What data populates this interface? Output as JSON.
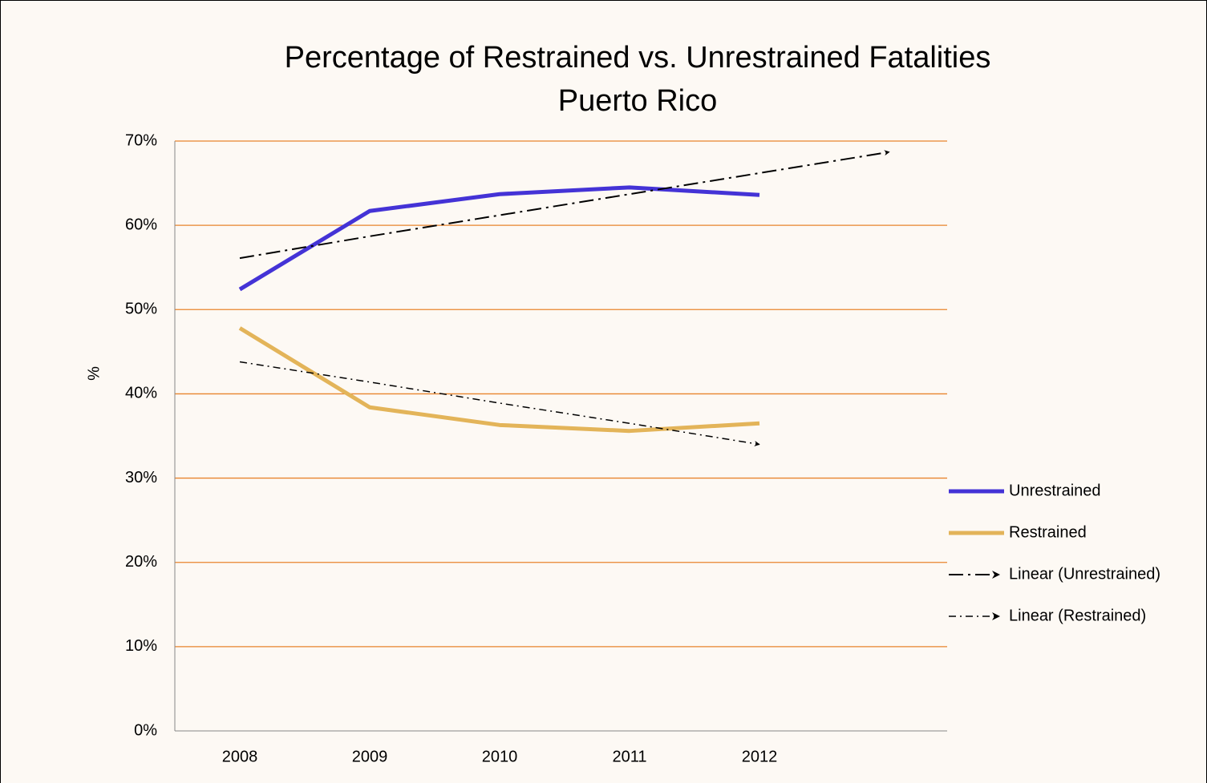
{
  "chart_data": {
    "type": "line",
    "title": "Percentage of Restrained vs. Unrestrained Fatalities",
    "subtitle": "Puerto Rico",
    "y_label": "%",
    "categories": [
      "2008",
      "2009",
      "2010",
      "2011",
      "2012",
      null
    ],
    "series": [
      {
        "name": "Unrestrained",
        "color": "#4433d6",
        "width": 5,
        "dash": "none",
        "values": [
          52.4,
          61.7,
          63.7,
          64.5,
          63.6,
          null
        ]
      },
      {
        "name": "Restrained",
        "color": "#e3b459",
        "width": 5,
        "dash": "none",
        "values": [
          47.8,
          38.4,
          36.3,
          35.6,
          36.5,
          null
        ]
      },
      {
        "name": "Linear (Unrestrained)",
        "color": "#000000",
        "width": 2,
        "dash": "18 6 3 6",
        "arrow": true,
        "values": [
          56.1,
          58.7,
          61.2,
          63.7,
          66.2,
          68.7
        ]
      },
      {
        "name": "Linear (Restrained)",
        "color": "#000000",
        "width": 1.5,
        "dash": "9 5 2 5",
        "arrow": true,
        "values": [
          43.8,
          41.4,
          38.9,
          36.5,
          34.0,
          null
        ]
      }
    ],
    "ylim": [
      0,
      70
    ],
    "yticks": [
      {
        "value": 0,
        "label": "0%"
      },
      {
        "value": 10,
        "label": "10%"
      },
      {
        "value": 20,
        "label": "20%"
      },
      {
        "value": 30,
        "label": "30%"
      },
      {
        "value": 40,
        "label": "40%"
      },
      {
        "value": 50,
        "label": "50%"
      },
      {
        "value": 60,
        "label": "60%"
      },
      {
        "value": 70,
        "label": "70%"
      }
    ],
    "grid": true,
    "grid_color": "#e8842c",
    "legend": "right"
  }
}
